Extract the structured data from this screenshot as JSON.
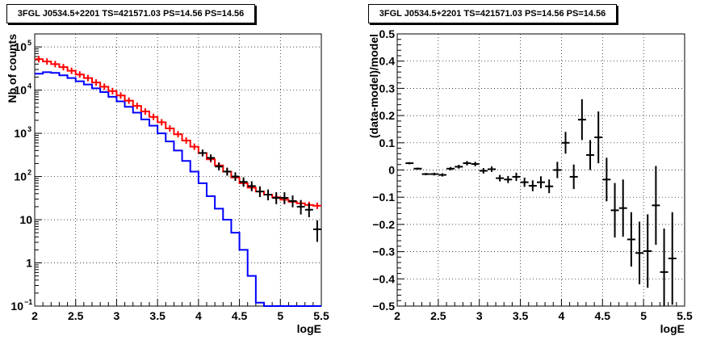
{
  "chart_data": [
    {
      "type": "line",
      "title": "3FGL J0534.5+2201 TS=421571.03 PS=14.56 PS=14.56",
      "xlabel": "logE",
      "ylabel": "Nb of counts",
      "xlim": [
        2,
        5.5
      ],
      "ylim": [
        0.1,
        200000
      ],
      "yscale": "log",
      "grid": true,
      "xticks": [
        "2",
        "2.5",
        "3",
        "3.5",
        "4",
        "4.5",
        "5",
        "5.5"
      ],
      "yticks": [
        {
          "value": 0.1,
          "label": "10",
          "exp": "−1"
        },
        {
          "value": 1,
          "label": "1",
          "exp": ""
        },
        {
          "value": 10,
          "label": "10",
          "exp": ""
        },
        {
          "value": 100,
          "label": "10",
          "exp": "2"
        },
        {
          "value": 1000,
          "label": "10",
          "exp": "3"
        },
        {
          "value": 10000,
          "label": "10",
          "exp": "4"
        },
        {
          "value": 100000,
          "label": "10",
          "exp": "5"
        }
      ],
      "series": [
        {
          "color": "#ff0000",
          "style": "hist",
          "x": [
            2.0,
            2.1,
            2.2,
            2.3,
            2.4,
            2.5,
            2.6,
            2.7,
            2.8,
            2.9,
            3.0,
            3.1,
            3.2,
            3.3,
            3.4,
            3.5,
            3.6,
            3.7,
            3.8,
            3.9,
            4.0,
            4.1,
            4.2,
            4.3,
            4.4,
            4.5,
            4.6,
            4.7,
            4.8,
            4.9,
            5.0,
            5.1,
            5.2,
            5.3,
            5.4
          ],
          "values": [
            52000,
            46000,
            40000,
            34000,
            28000,
            23000,
            19000,
            15000,
            12000,
            9500,
            7500,
            5700,
            4300,
            3200,
            2400,
            1800,
            1300,
            950,
            680,
            490,
            350,
            250,
            180,
            130,
            95,
            70,
            55,
            45,
            38,
            33,
            29,
            26,
            24,
            22,
            21
          ]
        },
        {
          "color": "#0000ff",
          "style": "hist",
          "x": [
            2.0,
            2.1,
            2.2,
            2.3,
            2.4,
            2.5,
            2.6,
            2.7,
            2.8,
            2.9,
            3.0,
            3.1,
            3.2,
            3.3,
            3.4,
            3.5,
            3.6,
            3.7,
            3.8,
            3.9,
            4.0,
            4.1,
            4.2,
            4.3,
            4.4,
            4.5,
            4.6,
            4.7,
            4.8,
            4.9,
            5.0,
            5.1,
            5.2,
            5.3,
            5.4
          ],
          "values": [
            24000,
            26000,
            25000,
            22000,
            19000,
            16000,
            13500,
            11000,
            9000,
            7000,
            5500,
            4100,
            3000,
            2100,
            1500,
            1000,
            650,
            400,
            230,
            130,
            70,
            35,
            18,
            10,
            5,
            2,
            0.5,
            0.12,
            0.05,
            0.05,
            0.05,
            0.05,
            0.05,
            0.05,
            0.05
          ]
        },
        {
          "color": "#000000",
          "style": "points",
          "x": [
            4.05,
            4.15,
            4.25,
            4.35,
            4.45,
            4.55,
            4.65,
            4.75,
            4.85,
            4.95,
            5.05,
            5.15,
            5.25,
            5.35,
            5.45
          ],
          "values": [
            350,
            270,
            170,
            130,
            100,
            75,
            60,
            45,
            38,
            32,
            32,
            27,
            20,
            17,
            6
          ],
          "errors": [
            19,
            16,
            13,
            11,
            10,
            9,
            8,
            7,
            6,
            6,
            6,
            5,
            5,
            4,
            2.5
          ]
        }
      ]
    },
    {
      "type": "scatter",
      "title": "3FGL J0534.5+2201 TS=421571.03 PS=14.56 PS=14.56",
      "xlabel": "logE",
      "ylabel": "(data-model)/model",
      "xlim": [
        2,
        5.5
      ],
      "ylim": [
        -0.5,
        0.5
      ],
      "grid": true,
      "xticks": [
        "2",
        "2.5",
        "3",
        "3.5",
        "4",
        "4.5",
        "5",
        "5.5"
      ],
      "yticks": [
        "−0.5",
        "−0.4",
        "−0.3",
        "−0.2",
        "−0.1",
        "0",
        "0.1",
        "0.2",
        "0.3",
        "0.4",
        "0.5"
      ],
      "series": [
        {
          "color": "#000000",
          "x": [
            2.15,
            2.25,
            2.35,
            2.45,
            2.55,
            2.65,
            2.75,
            2.85,
            2.95,
            3.05,
            3.15,
            3.25,
            3.35,
            3.45,
            3.55,
            3.65,
            3.75,
            3.85,
            3.95,
            4.05,
            4.15,
            4.25,
            4.35,
            4.45,
            4.55,
            4.65,
            4.75,
            4.85,
            4.95,
            5.05,
            5.15,
            5.25,
            5.35
          ],
          "values": [
            0.025,
            0.005,
            -0.015,
            -0.015,
            -0.018,
            0.005,
            0.012,
            0.025,
            0.022,
            -0.003,
            0.003,
            -0.03,
            -0.035,
            -0.025,
            -0.045,
            -0.058,
            -0.045,
            -0.06,
            0.0,
            0.1,
            -0.025,
            0.185,
            0.055,
            0.12,
            -0.035,
            -0.148,
            -0.14,
            -0.255,
            -0.305,
            -0.298,
            -0.13,
            -0.375,
            -0.325
          ],
          "errors": [
            0.004,
            0.004,
            0.004,
            0.005,
            0.006,
            0.006,
            0.007,
            0.008,
            0.008,
            0.01,
            0.01,
            0.012,
            0.013,
            0.015,
            0.017,
            0.02,
            0.022,
            0.025,
            0.03,
            0.04,
            0.045,
            0.075,
            0.055,
            0.095,
            0.08,
            0.1,
            0.105,
            0.1,
            0.115,
            0.135,
            0.145,
            0.16,
            0.17
          ]
        }
      ]
    }
  ]
}
